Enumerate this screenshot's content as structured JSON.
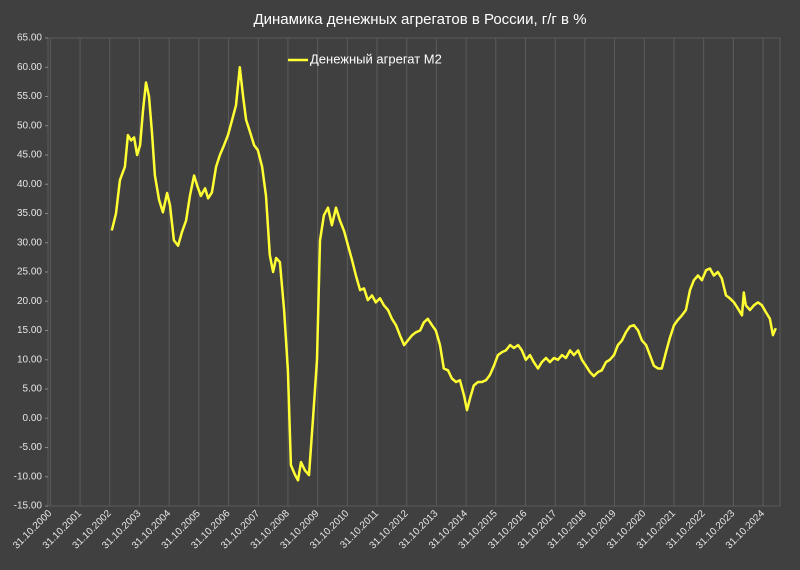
{
  "chart_data": {
    "type": "line",
    "title": "Динамика денежных агрегатов  в России, г/г в %",
    "legend": "top",
    "grid": true,
    "xlim": [
      2000.75,
      2025.4
    ],
    "ylim": [
      -15,
      65
    ],
    "yticks": [
      {
        "value": 65,
        "label": "65.00"
      },
      {
        "value": 60,
        "label": "60.00"
      },
      {
        "value": 55,
        "label": "55.00"
      },
      {
        "value": 50,
        "label": "50.00"
      },
      {
        "value": 45,
        "label": "45.00"
      },
      {
        "value": 40,
        "label": "40.00"
      },
      {
        "value": 35,
        "label": "35.00"
      },
      {
        "value": 30,
        "label": "30.00"
      },
      {
        "value": 25,
        "label": "25.00"
      },
      {
        "value": 20,
        "label": "20.00"
      },
      {
        "value": 15,
        "label": "15.00"
      },
      {
        "value": 10,
        "label": "10.00"
      },
      {
        "value": 5,
        "label": "5.00"
      },
      {
        "value": 0,
        "label": "0.00"
      },
      {
        "value": -5,
        "label": "-5.00"
      },
      {
        "value": -10,
        "label": "-10.00"
      },
      {
        "value": -15,
        "label": "-15.00"
      }
    ],
    "xticks": [
      {
        "value": 2000.83,
        "label": "31.10.2000"
      },
      {
        "value": 2001.83,
        "label": "31.10.2001"
      },
      {
        "value": 2002.83,
        "label": "31.10.2002"
      },
      {
        "value": 2003.83,
        "label": "31.10.2003"
      },
      {
        "value": 2004.83,
        "label": "31.10.2004"
      },
      {
        "value": 2005.83,
        "label": "31.10.2005"
      },
      {
        "value": 2006.83,
        "label": "31.10.2006"
      },
      {
        "value": 2007.83,
        "label": "31.10.2007"
      },
      {
        "value": 2008.83,
        "label": "31.10.2008"
      },
      {
        "value": 2009.83,
        "label": "31.10.2009"
      },
      {
        "value": 2010.83,
        "label": "31.10.2010"
      },
      {
        "value": 2011.83,
        "label": "31.10.2011"
      },
      {
        "value": 2012.83,
        "label": "31.10.2012"
      },
      {
        "value": 2013.83,
        "label": "31.10.2013"
      },
      {
        "value": 2014.83,
        "label": "31.10.2014"
      },
      {
        "value": 2015.83,
        "label": "31.10.2015"
      },
      {
        "value": 2016.83,
        "label": "31.10.2016"
      },
      {
        "value": 2017.83,
        "label": "31.10.2017"
      },
      {
        "value": 2018.83,
        "label": "31.10.2018"
      },
      {
        "value": 2019.83,
        "label": "31.10.2019"
      },
      {
        "value": 2020.83,
        "label": "31.10.2020"
      },
      {
        "value": 2021.83,
        "label": "31.10.2021"
      },
      {
        "value": 2022.83,
        "label": "31.10.2022"
      },
      {
        "value": 2023.83,
        "label": "31.10.2023"
      },
      {
        "value": 2024.83,
        "label": "31.10.2024"
      }
    ],
    "x": [
      2002.9,
      2003.04,
      2003.17,
      2003.34,
      2003.44,
      2003.55,
      2003.65,
      2003.75,
      2003.85,
      2003.95,
      2004.05,
      2004.15,
      2004.25,
      2004.35,
      2004.49,
      2004.62,
      2004.76,
      2004.86,
      2004.99,
      2005.13,
      2005.26,
      2005.4,
      2005.53,
      2005.67,
      2005.77,
      2005.9,
      2006.04,
      2006.14,
      2006.27,
      2006.41,
      2006.54,
      2006.68,
      2006.81,
      2006.95,
      2007.08,
      2007.21,
      2007.32,
      2007.42,
      2007.55,
      2007.69,
      2007.82,
      2007.96,
      2008.09,
      2008.22,
      2008.33,
      2008.43,
      2008.56,
      2008.7,
      2008.83,
      2008.93,
      2009.07,
      2009.17,
      2009.27,
      2009.4,
      2009.54,
      2009.67,
      2009.81,
      2009.91,
      2010.04,
      2010.18,
      2010.31,
      2010.45,
      2010.58,
      2010.72,
      2010.85,
      2010.99,
      2011.12,
      2011.26,
      2011.39,
      2011.52,
      2011.66,
      2011.79,
      2011.93,
      2012.06,
      2012.2,
      2012.33,
      2012.47,
      2012.6,
      2012.74,
      2012.87,
      2013.01,
      2013.14,
      2013.28,
      2013.41,
      2013.54,
      2013.68,
      2013.81,
      2013.95,
      2014.08,
      2014.22,
      2014.35,
      2014.49,
      2014.62,
      2014.76,
      2014.86,
      2014.96,
      2015.09,
      2015.23,
      2015.36,
      2015.5,
      2015.63,
      2015.77,
      2015.9,
      2016.04,
      2016.17,
      2016.31,
      2016.44,
      2016.58,
      2016.71,
      2016.84,
      2016.98,
      2017.11,
      2017.25,
      2017.38,
      2017.52,
      2017.65,
      2017.79,
      2017.92,
      2018.06,
      2018.19,
      2018.33,
      2018.46,
      2018.6,
      2018.73,
      2018.86,
      2019.0,
      2019.13,
      2019.27,
      2019.4,
      2019.54,
      2019.67,
      2019.81,
      2019.94,
      2020.08,
      2020.21,
      2020.35,
      2020.48,
      2020.62,
      2020.75,
      2020.89,
      2021.02,
      2021.15,
      2021.29,
      2021.42,
      2021.56,
      2021.69,
      2021.83,
      2021.96,
      2022.1,
      2022.23,
      2022.37,
      2022.5,
      2022.64,
      2022.77,
      2022.91,
      2023.04,
      2023.17,
      2023.31,
      2023.44,
      2023.58,
      2023.71,
      2023.85,
      2023.98,
      2024.12,
      2024.18,
      2024.25,
      2024.39,
      2024.52,
      2024.66,
      2024.79,
      2024.93,
      2025.06,
      2025.16,
      2025.26
    ],
    "series": [
      {
        "name": "Денежный агрегат М2",
        "color": "#ffff33",
        "values": [
          32.1,
          35,
          40.7,
          43,
          48.4,
          47.5,
          48,
          45,
          46.7,
          52.6,
          57.4,
          55,
          49,
          41.5,
          37.3,
          35.2,
          38.5,
          36.4,
          30.4,
          29.5,
          31.8,
          33.8,
          38,
          41.5,
          39.8,
          38,
          39.3,
          37.6,
          38.6,
          43,
          45,
          46.7,
          48.4,
          51,
          53.5,
          60,
          55,
          51,
          49,
          46.7,
          45.8,
          43,
          38,
          27.9,
          25,
          27.4,
          26.7,
          18.5,
          8.2,
          -8,
          -9.7,
          -10.6,
          -7.5,
          -8.9,
          -9.7,
          -0.3,
          10,
          30.4,
          34.7,
          36,
          33,
          36,
          33.8,
          32,
          29.6,
          27,
          24.4,
          21.9,
          22.2,
          20.2,
          21,
          19.8,
          20.5,
          19.3,
          18.5,
          17,
          15.9,
          14.2,
          12.5,
          13.3,
          14.2,
          14.7,
          15,
          16.4,
          17,
          15.9,
          15,
          12.5,
          8.5,
          8.2,
          6.8,
          6.2,
          6.5,
          3.9,
          1.4,
          3.4,
          5.6,
          6.2,
          6.2,
          6.5,
          7.4,
          9,
          10.8,
          11.3,
          11.6,
          12.5,
          12,
          12.5,
          11.6,
          10,
          10.8,
          9.6,
          8.5,
          9.6,
          10.3,
          9.6,
          10.3,
          10,
          10.8,
          10.3,
          11.6,
          10.8,
          11.6,
          10,
          9,
          7.9,
          7.2,
          7.9,
          8.2,
          9.6,
          10,
          10.8,
          12.5,
          13.3,
          14.7,
          15.7,
          15.9,
          15,
          13.3,
          12.5,
          10.8,
          9,
          8.5,
          8.5,
          11.3,
          13.7,
          15.9,
          16.8,
          17.6,
          18.5,
          21.9,
          23.6,
          24.4,
          23.6,
          25.3,
          25.6,
          24.4,
          25,
          23.9,
          21,
          20.5,
          19.8,
          18.8,
          17.6,
          21.5,
          19.3,
          18.5,
          19.3,
          19.8,
          19.3,
          18.1,
          17,
          14.2,
          15.4
        ]
      }
    ]
  }
}
